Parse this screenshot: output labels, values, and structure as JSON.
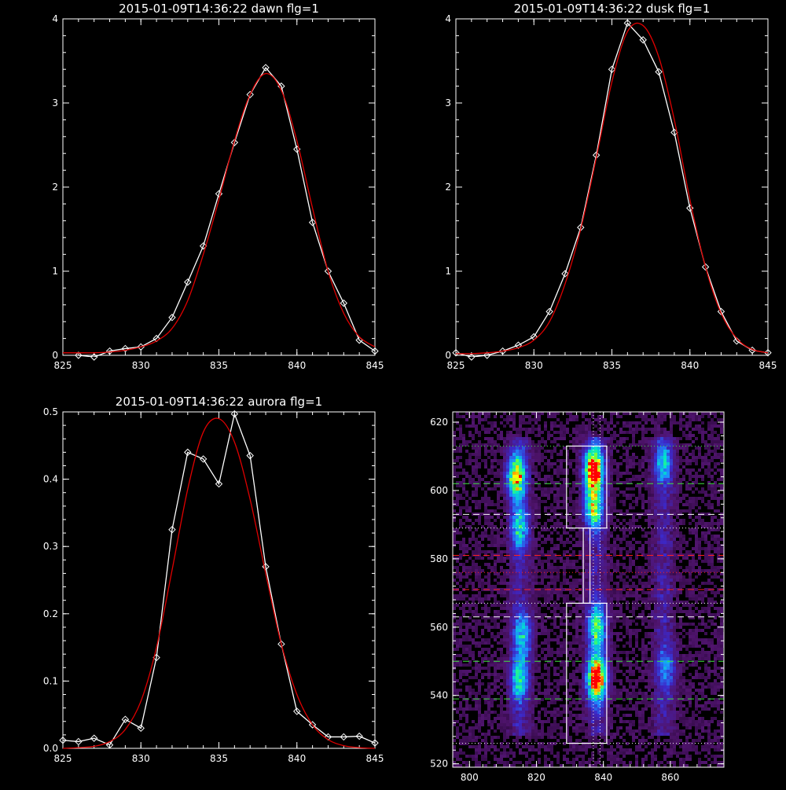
{
  "chart_data": [
    {
      "type": "line",
      "title": "2015-01-09T14:36:22 dawn flg=1",
      "xlim": [
        825,
        845
      ],
      "ylim": [
        0,
        4
      ],
      "xticks": [
        825,
        830,
        835,
        840,
        845
      ],
      "yticks": [
        0,
        1,
        2,
        3,
        4
      ],
      "series": [
        {
          "color": "#ffffff",
          "markers": "diamond",
          "x": [
            826,
            827,
            828,
            829,
            830,
            831,
            832,
            833,
            834,
            835,
            836,
            837,
            838,
            839,
            840,
            841,
            842,
            843,
            844,
            845
          ],
          "y": [
            0.0,
            -0.02,
            0.05,
            0.08,
            0.1,
            0.2,
            0.45,
            0.87,
            1.3,
            1.92,
            2.53,
            3.1,
            3.42,
            3.2,
            2.45,
            1.58,
            1.0,
            0.62,
            0.18,
            0.05
          ]
        },
        {
          "color": "#e00000",
          "markers": "none",
          "x": [
            825,
            826,
            827,
            828,
            829,
            830,
            831,
            832,
            833,
            834,
            835,
            836,
            837,
            838,
            839,
            840,
            841,
            842,
            843,
            844,
            845
          ],
          "y": [
            0.03,
            0.03,
            0.03,
            0.04,
            0.06,
            0.1,
            0.17,
            0.32,
            0.65,
            1.2,
            1.85,
            2.55,
            3.1,
            3.35,
            3.15,
            2.55,
            1.75,
            1.0,
            0.5,
            0.22,
            0.1
          ]
        }
      ]
    },
    {
      "type": "line",
      "title": "2015-01-09T14:36:22 dusk flg=1",
      "xlim": [
        825,
        845
      ],
      "ylim": [
        0,
        4
      ],
      "xticks": [
        825,
        830,
        835,
        840,
        845
      ],
      "yticks": [
        0,
        1,
        2,
        3,
        4
      ],
      "series": [
        {
          "color": "#ffffff",
          "markers": "diamond",
          "x": [
            825,
            826,
            827,
            828,
            829,
            830,
            831,
            832,
            833,
            834,
            835,
            836,
            837,
            838,
            839,
            840,
            841,
            842,
            843,
            844,
            845
          ],
          "y": [
            0.03,
            -0.02,
            0.0,
            0.05,
            0.12,
            0.22,
            0.52,
            0.97,
            1.52,
            2.38,
            3.4,
            3.95,
            3.75,
            3.37,
            2.65,
            1.75,
            1.05,
            0.52,
            0.17,
            0.06,
            0.03
          ],
          "note": ""
        },
        {
          "color": "#e00000",
          "markers": "none",
          "x": [
            825,
            826,
            827,
            828,
            829,
            830,
            831,
            832,
            833,
            834,
            835,
            836,
            837,
            838,
            839,
            840,
            841,
            842,
            843,
            844,
            845
          ],
          "y": [
            0.02,
            0.02,
            0.03,
            0.05,
            0.09,
            0.18,
            0.4,
            0.85,
            1.5,
            2.35,
            3.25,
            3.85,
            3.92,
            3.55,
            2.8,
            1.85,
            1.05,
            0.5,
            0.2,
            0.07,
            0.03
          ]
        }
      ]
    },
    {
      "type": "line",
      "title": "2015-01-09T14:36:22 aurora flg=1",
      "xlim": [
        825,
        845
      ],
      "ylim": [
        0,
        0.5
      ],
      "xticks": [
        825,
        830,
        835,
        840,
        845
      ],
      "yticks": [
        0.0,
        0.1,
        0.2,
        0.3,
        0.4,
        0.5
      ],
      "ytick_labels": [
        "0.0",
        "0.1",
        "0.2",
        "0.3",
        "0.4",
        "0.5"
      ],
      "series": [
        {
          "color": "#ffffff",
          "markers": "diamond",
          "x": [
            825,
            826,
            827,
            828,
            829,
            830,
            831,
            832,
            833,
            834,
            835,
            836,
            837,
            838,
            839,
            840,
            841,
            842,
            843,
            844,
            845
          ],
          "y": [
            0.012,
            0.01,
            0.015,
            0.005,
            0.043,
            0.03,
            0.135,
            0.325,
            0.44,
            0.43,
            0.393,
            0.497,
            0.435,
            0.27,
            0.155,
            0.055,
            0.035,
            0.017,
            0.017,
            0.018,
            0.008
          ]
        },
        {
          "color": "#e00000",
          "markers": "none",
          "x": [
            825,
            826,
            827,
            828,
            829,
            830,
            831,
            832,
            833,
            834,
            835,
            836,
            837,
            838,
            839,
            840,
            841,
            842,
            843,
            844,
            845
          ],
          "y": [
            0.0,
            0.001,
            0.003,
            0.01,
            0.028,
            0.07,
            0.15,
            0.265,
            0.385,
            0.47,
            0.49,
            0.455,
            0.37,
            0.26,
            0.155,
            0.08,
            0.035,
            0.013,
            0.004,
            0.001,
            0.0
          ]
        }
      ]
    },
    {
      "type": "heatmap",
      "title": "",
      "xlim": [
        795,
        876
      ],
      "ylim": [
        519,
        623
      ],
      "xticks": [
        800,
        820,
        840,
        860
      ],
      "yticks": [
        520,
        540,
        560,
        580,
        600,
        620
      ],
      "columns": [
        {
          "x": 815,
          "width": 3
        },
        {
          "x": 838,
          "width": 3
        },
        {
          "x": 858,
          "width": 3
        }
      ],
      "blobs": [
        {
          "x": 814,
          "y": 604,
          "peak": 0.75
        },
        {
          "x": 815,
          "y": 589,
          "peak": 0.4
        },
        {
          "x": 816,
          "y": 558,
          "peak": 0.35
        },
        {
          "x": 815,
          "y": 545,
          "peak": 0.45
        },
        {
          "x": 837,
          "y": 606,
          "peak": 1.0
        },
        {
          "x": 837,
          "y": 595,
          "peak": 0.55
        },
        {
          "x": 838,
          "y": 560,
          "peak": 0.5
        },
        {
          "x": 838,
          "y": 545,
          "peak": 1.0
        },
        {
          "x": 858,
          "y": 608,
          "peak": 0.35
        },
        {
          "x": 859,
          "y": 548,
          "peak": 0.25
        }
      ],
      "hlines": [
        {
          "y": 613,
          "color": "#40e040",
          "style": "dotted"
        },
        {
          "y": 602,
          "color": "#40e040",
          "style": "dashed"
        },
        {
          "y": 593,
          "color": "#ffffff",
          "style": "dashed"
        },
        {
          "y": 589,
          "color": "#ffffff",
          "style": "dotted"
        },
        {
          "y": 581,
          "color": "#ff2020",
          "style": "dashed"
        },
        {
          "y": 576,
          "color": "#ff2020",
          "style": "dotted"
        },
        {
          "y": 571,
          "color": "#ff2020",
          "style": "dashed"
        },
        {
          "y": 567,
          "color": "#ffffff",
          "style": "dotted"
        },
        {
          "y": 563,
          "color": "#ffffff",
          "style": "dashed"
        },
        {
          "y": 550,
          "color": "#40e040",
          "style": "dashed"
        },
        {
          "y": 539,
          "color": "#40e040",
          "style": "dashed"
        },
        {
          "y": 526,
          "color": "#ffffff",
          "style": "dotted"
        }
      ],
      "vlines": [
        {
          "x": 837,
          "color": "#ffffff",
          "style": "dotted"
        },
        {
          "x": 839,
          "color": "#ffffff",
          "style": "dotted"
        }
      ],
      "boxes": [
        {
          "x0": 829,
          "x1": 841,
          "y0": 589,
          "y1": 613
        },
        {
          "x0": 829,
          "x1": 841,
          "y0": 526,
          "y1": 567
        },
        {
          "x0": 834,
          "x1": 836,
          "y0": 567,
          "y1": 589
        }
      ]
    }
  ]
}
